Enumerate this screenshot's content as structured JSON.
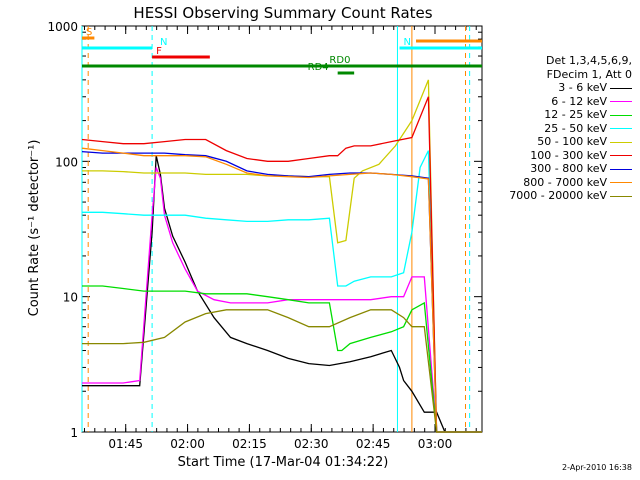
{
  "chart_data": {
    "type": "line",
    "title": "HESSI Observing Summary Count Rates",
    "xlabel": "Start Time (17-Mar-04 01:34:22)",
    "ylabel": "Count Rate (s⁻¹ detector⁻¹)",
    "ylog": true,
    "xlim_minutes": [
      0,
      97
    ],
    "ylim": [
      1,
      1000
    ],
    "x_tick_labels": [
      "01:45",
      "02:00",
      "02:15",
      "02:30",
      "02:45",
      "03:00"
    ],
    "x_tick_minutes": [
      10.6,
      25.6,
      40.6,
      55.6,
      70.6,
      85.6
    ],
    "y_tick_labels": [
      "1",
      "10",
      "100",
      "1000"
    ],
    "y_tick_values": [
      1,
      10,
      100,
      1000
    ],
    "legend": {
      "header_line1": "Det 1,3,4,5,6,9,",
      "header_line2": "FDecim 1, Att 0"
    },
    "series": [
      {
        "name": "3 - 6 keV",
        "color": "#000000",
        "x": [
          0,
          5,
          10,
          14,
          17,
          18,
          19,
          20,
          22,
          25,
          28,
          32,
          36,
          40,
          45,
          50,
          55,
          60,
          65,
          70,
          75,
          77,
          78,
          80,
          83,
          86,
          88,
          92,
          97
        ],
        "y": [
          2.2,
          2.2,
          2.2,
          2.2,
          30,
          110,
          80,
          45,
          28,
          18,
          11,
          7,
          5,
          4.5,
          4,
          3.5,
          3.2,
          3.1,
          3.3,
          3.6,
          4,
          3,
          2.4,
          2,
          1.4,
          1.4,
          1,
          1,
          1
        ]
      },
      {
        "name": "6 - 12 keV",
        "color": "#ff00ff",
        "x": [
          0,
          5,
          10,
          14,
          17,
          18,
          19,
          20,
          22,
          25,
          28,
          32,
          36,
          40,
          45,
          50,
          55,
          60,
          65,
          70,
          75,
          77,
          78,
          80,
          83,
          86,
          97
        ],
        "y": [
          2.3,
          2.3,
          2.3,
          2.4,
          40,
          90,
          75,
          40,
          25,
          16,
          11,
          9.5,
          9,
          9,
          9,
          9.5,
          9.5,
          9.5,
          9.5,
          9.5,
          10,
          10,
          10,
          14,
          14,
          1,
          1
        ]
      },
      {
        "name": "12 - 25 keV",
        "color": "#00dd00",
        "x": [
          0,
          5,
          10,
          15,
          20,
          25,
          30,
          35,
          40,
          45,
          50,
          55,
          60,
          62,
          63,
          65,
          70,
          75,
          78,
          80,
          83,
          86,
          97
        ],
        "y": [
          12,
          12,
          11.5,
          11,
          11,
          11,
          10.5,
          10.5,
          10.5,
          10,
          9.5,
          9,
          9,
          4,
          4,
          4.5,
          5,
          5.5,
          6,
          8,
          9,
          1,
          1
        ]
      },
      {
        "name": "25 - 50 keV",
        "color": "#00ffff",
        "x": [
          0,
          5,
          10,
          15,
          20,
          25,
          30,
          35,
          40,
          45,
          50,
          55,
          60,
          62,
          64,
          66,
          70,
          75,
          78,
          80,
          82,
          84,
          86,
          97
        ],
        "y": [
          42,
          42,
          41,
          40,
          40,
          40,
          38,
          37,
          36,
          36,
          37,
          37,
          38,
          12,
          12,
          13,
          14,
          14,
          15,
          30,
          90,
          120,
          1,
          1
        ]
      },
      {
        "name": "50 - 100 keV",
        "color": "#cccc00",
        "x": [
          0,
          5,
          10,
          15,
          20,
          25,
          30,
          35,
          40,
          45,
          50,
          55,
          60,
          62,
          64,
          66,
          68,
          72,
          76,
          80,
          84,
          86,
          97
        ],
        "y": [
          85,
          85,
          84,
          82,
          82,
          82,
          80,
          80,
          80,
          78,
          78,
          77,
          77,
          25,
          26,
          75,
          85,
          95,
          130,
          200,
          400,
          1,
          1
        ]
      },
      {
        "name": "100 - 300 keV",
        "color": "#ee0000",
        "x": [
          0,
          5,
          10,
          15,
          20,
          25,
          30,
          35,
          40,
          45,
          50,
          55,
          60,
          62,
          64,
          66,
          70,
          75,
          80,
          84,
          86,
          97
        ],
        "y": [
          145,
          140,
          135,
          135,
          140,
          145,
          145,
          120,
          105,
          100,
          100,
          105,
          110,
          110,
          125,
          130,
          130,
          140,
          150,
          300,
          1,
          1
        ]
      },
      {
        "name": "300 - 800 keV",
        "color": "#0000dd",
        "x": [
          0,
          5,
          10,
          15,
          20,
          25,
          30,
          35,
          40,
          45,
          50,
          55,
          60,
          65,
          70,
          75,
          80,
          84,
          86,
          97
        ],
        "y": [
          118,
          115,
          115,
          115,
          115,
          112,
          110,
          100,
          85,
          80,
          78,
          77,
          80,
          82,
          82,
          80,
          78,
          75,
          1,
          1
        ]
      },
      {
        "name": "800 - 7000 keV",
        "color": "#ff8800",
        "x": [
          0,
          5,
          10,
          15,
          20,
          25,
          30,
          35,
          40,
          45,
          50,
          55,
          60,
          65,
          70,
          75,
          80,
          84,
          86,
          97
        ],
        "y": [
          125,
          120,
          115,
          110,
          110,
          110,
          108,
          95,
          82,
          78,
          77,
          76,
          78,
          80,
          82,
          80,
          77,
          74,
          1,
          1
        ]
      },
      {
        "name": "7000 - 20000 keV",
        "color": "#888800",
        "x": [
          0,
          5,
          10,
          15,
          20,
          25,
          30,
          35,
          40,
          45,
          50,
          55,
          60,
          65,
          70,
          75,
          78,
          80,
          83,
          86,
          97
        ],
        "y": [
          4.5,
          4.5,
          4.5,
          4.6,
          5,
          6.5,
          7.5,
          8,
          8,
          8,
          7,
          6,
          6,
          7,
          8,
          8,
          7,
          6,
          6,
          1,
          1
        ]
      }
    ],
    "flags": [
      {
        "label": "S",
        "color": "#ff8800",
        "from": 0,
        "to": 3
      },
      {
        "label": "N",
        "color": "#00ffff",
        "from": 0,
        "to": 17
      },
      {
        "label": "N",
        "color": "#00ffff",
        "from": 77,
        "to": 97
      },
      {
        "label": "F",
        "color": "#ee0000",
        "from": 17,
        "to": 31
      },
      {
        "label": "RD4",
        "color": "#008800",
        "from": 62,
        "to": 66
      },
      {
        "label": "RD0",
        "color": "#008800",
        "from": 0,
        "to": 97
      },
      {
        "label": "",
        "color": "#ff8800",
        "from": 81,
        "to": 97
      }
    ],
    "vertical_lines": [
      {
        "color": "#00ffff",
        "x": 17,
        "style": "dashed"
      },
      {
        "color": "#ff8800",
        "x": 1.5,
        "style": "dashed"
      },
      {
        "color": "#00ffff",
        "x": 0,
        "style": "solid"
      },
      {
        "color": "#00ffff",
        "x": 76.5,
        "style": "solid"
      },
      {
        "color": "#ff8800",
        "x": 80,
        "style": "solid"
      },
      {
        "color": "#ff8800",
        "x": 93,
        "style": "dashed"
      },
      {
        "color": "#00ffff",
        "x": 94,
        "style": "dashed"
      }
    ]
  },
  "footer": {
    "timestamp": "2-Apr-2010 16:38"
  }
}
